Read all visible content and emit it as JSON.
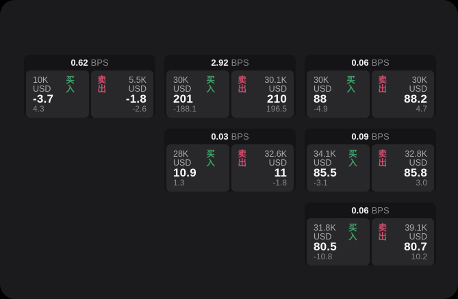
{
  "window": {
    "background": "#000000",
    "panel_background": "#1b1b1d"
  },
  "labels": {
    "buy": "买入",
    "sell": "卖出",
    "bps_unit": "BPS"
  },
  "colors": {
    "buy_green": "#3f9e6a",
    "sell_red": "#cf4f6e",
    "card_background": "#141416",
    "tile_background": "#28282a",
    "primary_text": "#fafafa",
    "muted_text": "#87878b"
  },
  "cards": [
    {
      "row": 1,
      "col": 1,
      "bps": "0.62",
      "buy": {
        "size": "10K USD",
        "price": "-3.7",
        "delta": "4.3"
      },
      "sell": {
        "size": "5.5K USD",
        "price": "-1.8",
        "delta": "-2.6"
      }
    },
    {
      "row": 1,
      "col": 2,
      "bps": "2.92",
      "buy": {
        "size": "30K USD",
        "price": "201",
        "delta": "-188.1"
      },
      "sell": {
        "size": "30.1K USD",
        "price": "210",
        "delta": "196.5"
      }
    },
    {
      "row": 1,
      "col": 3,
      "bps": "0.06",
      "buy": {
        "size": "30K USD",
        "price": "88",
        "delta": "-4.9"
      },
      "sell": {
        "size": "30K USD",
        "price": "88.2",
        "delta": "4.7"
      }
    },
    {
      "row": 2,
      "col": 2,
      "bps": "0.03",
      "buy": {
        "size": "28K USD",
        "price": "10.9",
        "delta": "1.3"
      },
      "sell": {
        "size": "32.6K USD",
        "price": "11",
        "delta": "-1.8"
      }
    },
    {
      "row": 2,
      "col": 3,
      "bps": "0.09",
      "buy": {
        "size": "34.1K USD",
        "price": "85.5",
        "delta": "-3.1"
      },
      "sell": {
        "size": "32.8K USD",
        "price": "85.8",
        "delta": "3.0"
      }
    },
    {
      "row": 3,
      "col": 3,
      "bps": "0.06",
      "buy": {
        "size": "31.8K USD",
        "price": "80.5",
        "delta": "-10.8"
      },
      "sell": {
        "size": "39.1K USD",
        "price": "80.7",
        "delta": "10.2"
      }
    }
  ]
}
